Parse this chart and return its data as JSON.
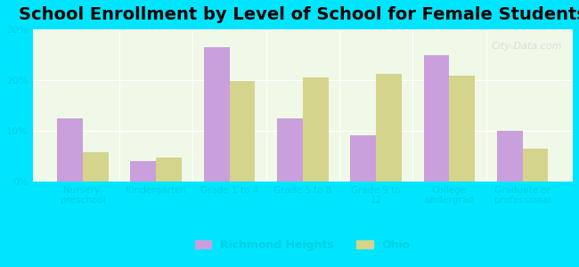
{
  "title": "School Enrollment by Level of School for Female Students",
  "categories": [
    "Nursery,\npreschool",
    "Kindergarten",
    "Grade 1 to 4",
    "Grade 5 to 8",
    "Grade 9 to\n12",
    "College\nundergrad",
    "Graduate or\nprofessional"
  ],
  "richmond_heights": [
    12.5,
    4.0,
    26.5,
    12.5,
    9.2,
    25.0,
    10.0
  ],
  "ohio": [
    5.8,
    4.8,
    19.8,
    20.6,
    21.3,
    20.9,
    6.5
  ],
  "bar_color_rh": "#c9a0dc",
  "bar_color_ohio": "#d4d48c",
  "background_outer": "#00e5ff",
  "background_inner": "#f0f8e8",
  "ylim": [
    0,
    30
  ],
  "yticks": [
    0,
    10,
    20,
    30
  ],
  "ytick_labels": [
    "0%",
    "10%",
    "20%",
    "30%"
  ],
  "legend_rh": "Richmond Heights",
  "legend_ohio": "Ohio",
  "title_fontsize": 14,
  "bar_width": 0.35
}
